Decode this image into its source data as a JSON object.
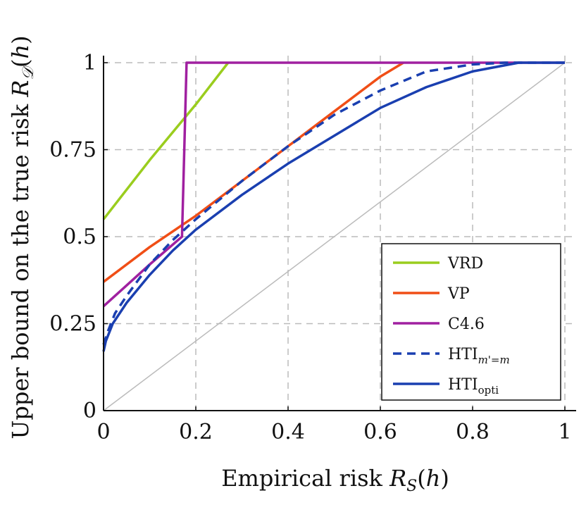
{
  "chart_data": {
    "type": "line",
    "xlabel": "Empirical risk R_S(h)",
    "ylabel": "Upper bound on the true risk R_D(h)",
    "xlim": [
      0,
      1
    ],
    "ylim": [
      0,
      1
    ],
    "grid": true,
    "legend_position": "bottom-right",
    "x_ticks": [
      {
        "value": 0,
        "label": "0"
      },
      {
        "value": 0.2,
        "label": "0.2"
      },
      {
        "value": 0.4,
        "label": "0.4"
      },
      {
        "value": 0.6,
        "label": "0.6"
      },
      {
        "value": 0.8,
        "label": "0.8"
      },
      {
        "value": 1,
        "label": "1"
      }
    ],
    "y_ticks": [
      {
        "value": 0,
        "label": "0"
      },
      {
        "value": 0.25,
        "label": "0.25"
      },
      {
        "value": 0.5,
        "label": "0.5"
      },
      {
        "value": 0.75,
        "label": "0.75"
      },
      {
        "value": 1,
        "label": "1"
      }
    ],
    "series": [
      {
        "name": "VRD",
        "color": "#9acd1e",
        "style": "solid",
        "x": [
          0,
          0.1,
          0.2,
          0.27
        ],
        "y": [
          0.55,
          0.72,
          0.88,
          1.0
        ]
      },
      {
        "name": "VP",
        "color": "#f04e16",
        "style": "solid",
        "x": [
          0,
          0.1,
          0.2,
          0.3,
          0.4,
          0.5,
          0.6,
          0.65
        ],
        "y": [
          0.37,
          0.47,
          0.56,
          0.66,
          0.76,
          0.86,
          0.96,
          1.0
        ]
      },
      {
        "name": "C4.6",
        "color": "#a020a0",
        "style": "solid",
        "x": [
          0,
          0.05,
          0.1,
          0.17,
          0.18,
          1.0
        ],
        "y": [
          0.3,
          0.36,
          0.42,
          0.5,
          1.0,
          1.0
        ]
      },
      {
        "name": "HTI_{m'=m}",
        "color": "#1a3fb0",
        "style": "dashed",
        "x": [
          0,
          0.01,
          0.025,
          0.05,
          0.1,
          0.15,
          0.2,
          0.3,
          0.4,
          0.5,
          0.6,
          0.7,
          0.8,
          0.87,
          1.0
        ],
        "y": [
          0.19,
          0.23,
          0.28,
          0.33,
          0.42,
          0.49,
          0.55,
          0.66,
          0.76,
          0.85,
          0.92,
          0.975,
          0.995,
          1.0,
          1.0
        ]
      },
      {
        "name": "HTI_opti",
        "color": "#1a3fb0",
        "style": "solid",
        "x": [
          0,
          0.005,
          0.02,
          0.05,
          0.1,
          0.15,
          0.2,
          0.3,
          0.4,
          0.5,
          0.6,
          0.7,
          0.8,
          0.9,
          1.0
        ],
        "y": [
          0.17,
          0.2,
          0.25,
          0.31,
          0.39,
          0.46,
          0.52,
          0.62,
          0.71,
          0.79,
          0.87,
          0.93,
          0.975,
          1.0,
          1.0
        ]
      },
      {
        "name": "",
        "color": "#bbbbbb",
        "style": "solid",
        "x": [
          0,
          1
        ],
        "y": [
          0,
          1
        ]
      }
    ]
  }
}
